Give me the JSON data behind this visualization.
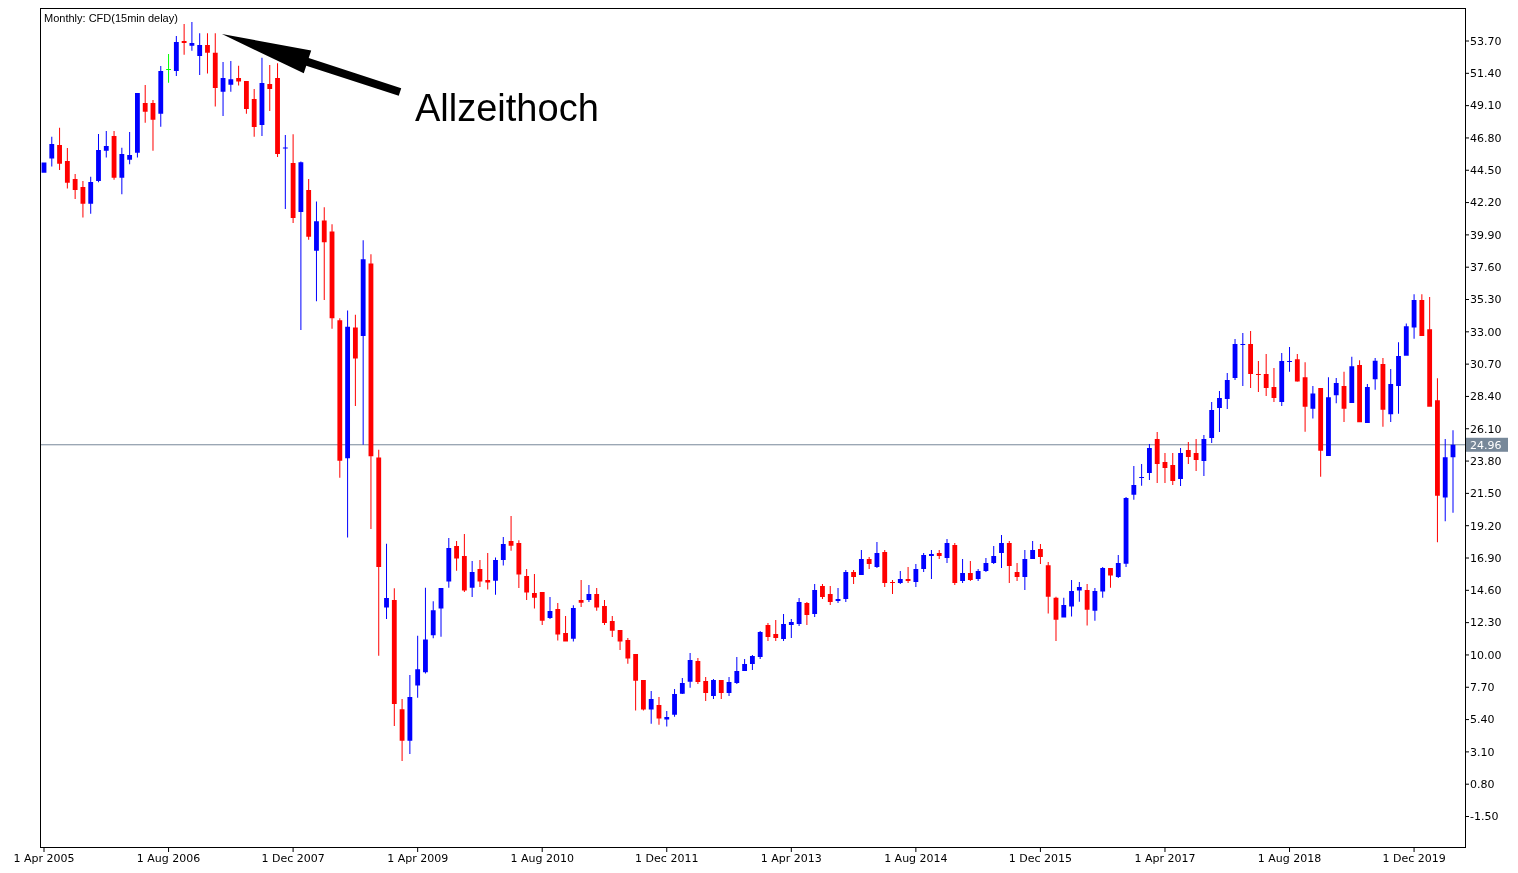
{
  "chart_data": {
    "type": "candlestick",
    "title": "Monthly: CFD(15min delay)",
    "categories": [
      "1 Apr 2005",
      null,
      null,
      null,
      null,
      null,
      null,
      null,
      null,
      null,
      null,
      null,
      null,
      null,
      null,
      null,
      "1 Aug 2006",
      null,
      null,
      null,
      null,
      null,
      null,
      null,
      null,
      null,
      null,
      null,
      null,
      null,
      null,
      null,
      "1 Dec 2007",
      null,
      null,
      null,
      null,
      null,
      null,
      null,
      null,
      null,
      null,
      null,
      null,
      null,
      null,
      null,
      "1 Apr 2009",
      null,
      null,
      null,
      null,
      null,
      null,
      null,
      null,
      null,
      null,
      null,
      null,
      null,
      null,
      null,
      "1 Aug 2010",
      null,
      null,
      null,
      null,
      null,
      null,
      null,
      null,
      null,
      null,
      null,
      null,
      null,
      null,
      null,
      "1 Dec 2011",
      null,
      null,
      null,
      null,
      null,
      null,
      null,
      null,
      null,
      null,
      null,
      null,
      null,
      null,
      null,
      "1 Apr 2013",
      null,
      null,
      null,
      null,
      null,
      null,
      null,
      null,
      null,
      null,
      null,
      null,
      null,
      null,
      null,
      "1 Aug 2014",
      null,
      null,
      null,
      null,
      null,
      null,
      null,
      null,
      null,
      null,
      null,
      null,
      null,
      null,
      null,
      "1 Dec 2015",
      null,
      null,
      null,
      null,
      null,
      null,
      null,
      null,
      null,
      null,
      null,
      null,
      null,
      null,
      null,
      "1 Apr 2017",
      null,
      null,
      null,
      null,
      null,
      null,
      null,
      null,
      null,
      null,
      null,
      null,
      null,
      null,
      null,
      "1 Aug 2018",
      null,
      null,
      null,
      null,
      null,
      null,
      null,
      null,
      null,
      null,
      null,
      null,
      null,
      null,
      null,
      "1 Dec 2019",
      null,
      null,
      null,
      null,
      null
    ],
    "ohlc": [
      [
        44.33,
        45.06,
        44.33,
        45.06
      ],
      [
        45.33,
        46.89,
        44.76,
        46.37
      ],
      [
        46.3,
        47.53,
        44.52,
        44.97
      ],
      [
        45.16,
        46.08,
        43.21,
        43.62
      ],
      [
        43.88,
        44.23,
        42.45,
        43.09
      ],
      [
        43.31,
        43.74,
        41.13,
        42.12
      ],
      [
        42.12,
        44.04,
        41.41,
        43.66
      ],
      [
        43.74,
        47.08,
        43.64,
        45.94
      ],
      [
        45.89,
        47.29,
        45.4,
        46.23
      ],
      [
        46.94,
        47.29,
        43.83,
        43.97
      ],
      [
        43.97,
        46.11,
        42.79,
        45.66
      ],
      [
        45.25,
        47.22,
        44.92,
        45.59
      ],
      [
        45.75,
        50.0,
        45.4,
        50.0
      ],
      [
        49.29,
        50.57,
        47.89,
        48.67
      ],
      [
        49.29,
        49.5,
        45.89,
        48.1
      ],
      [
        48.53,
        51.92,
        47.6,
        51.56
      ],
      [
        51.68,
        52.77,
        50.73,
        51.68
      ],
      [
        51.56,
        54.06,
        51.21,
        53.63
      ],
      [
        53.7,
        54.91,
        52.73,
        53.56
      ],
      [
        53.37,
        55.05,
        53.01,
        53.56
      ],
      [
        52.63,
        54.25,
        51.28,
        53.42
      ],
      [
        53.42,
        54.25,
        51.38,
        52.87
      ],
      [
        52.87,
        54.25,
        49.03,
        50.35
      ],
      [
        50.09,
        52.21,
        48.36,
        51.07
      ],
      [
        50.59,
        52.28,
        50.09,
        50.97
      ],
      [
        51.07,
        51.94,
        50.54,
        50.81
      ],
      [
        50.85,
        50.85,
        48.53,
        48.86
      ],
      [
        49.57,
        50.28,
        46.89,
        47.58
      ],
      [
        47.72,
        52.51,
        46.94,
        50.71
      ],
      [
        50.64,
        51.99,
        48.72,
        50.28
      ],
      [
        51.07,
        52.11,
        45.44,
        45.66
      ],
      [
        46.05,
        47.01,
        41.74,
        46.11
      ],
      [
        45.01,
        47.06,
        40.75,
        41.11
      ],
      [
        41.53,
        45.13,
        33.13,
        45.07
      ],
      [
        43.09,
        43.87,
        39.55,
        39.76
      ],
      [
        38.77,
        42.28,
        35.17,
        40.87
      ],
      [
        40.93,
        41.86,
        35.26,
        39.37
      ],
      [
        40.15,
        40.66,
        33.22,
        33.97
      ],
      [
        33.82,
        33.97,
        22.62,
        23.82
      ],
      [
        24.0,
        34.51,
        18.36,
        33.37
      ],
      [
        33.31,
        34.21,
        27.72,
        31.11
      ],
      [
        32.71,
        39.52,
        24.96,
        38.17
      ],
      [
        37.87,
        38.53,
        18.96,
        24.15
      ],
      [
        24.06,
        24.6,
        9.95,
        16.26
      ],
      [
        13.37,
        17.91,
        12.56,
        14.06
      ],
      [
        13.91,
        14.75,
        4.94,
        6.5
      ],
      [
        6.14,
        6.86,
        2.45,
        3.89
      ],
      [
        3.89,
        8.57,
        2.95,
        7.01
      ],
      [
        7.82,
        11.36,
        6.95,
        8.99
      ],
      [
        8.76,
        14.79,
        8.68,
        11.1
      ],
      [
        11.4,
        13.82,
        11.19,
        13.18
      ],
      [
        13.3,
        14.77,
        11.3,
        14.77
      ],
      [
        15.22,
        18.33,
        14.79,
        17.62
      ],
      [
        17.76,
        18.11,
        16.0,
        16.86
      ],
      [
        17.05,
        18.61,
        14.48,
        14.58
      ],
      [
        14.79,
        16.69,
        14.13,
        15.91
      ],
      [
        16.12,
        16.76,
        14.84,
        15.22
      ],
      [
        15.34,
        17.26,
        14.65,
        15.15
      ],
      [
        15.29,
        16.93,
        14.29,
        16.76
      ],
      [
        16.76,
        18.4,
        16.36,
        17.9
      ],
      [
        18.11,
        19.89,
        17.42,
        17.78
      ],
      [
        17.97,
        18.16,
        14.77,
        15.72
      ],
      [
        15.62,
        16.12,
        13.91,
        14.44
      ],
      [
        14.41,
        15.76,
        13.3,
        14.08
      ],
      [
        14.48,
        14.48,
        12.13,
        12.44
      ],
      [
        12.63,
        14.13,
        12.56,
        13.13
      ],
      [
        13.27,
        13.7,
        11.02,
        11.45
      ],
      [
        11.57,
        12.77,
        10.95,
        10.95
      ],
      [
        11.16,
        13.53,
        10.95,
        13.34
      ],
      [
        13.91,
        15.34,
        13.41,
        13.72
      ],
      [
        13.91,
        14.98,
        13.77,
        14.34
      ],
      [
        14.34,
        14.77,
        13.15,
        13.37
      ],
      [
        13.49,
        13.91,
        12.13,
        12.28
      ],
      [
        12.42,
        12.77,
        11.28,
        11.73
      ],
      [
        11.78,
        11.78,
        10.35,
        10.95
      ],
      [
        11.07,
        11.21,
        9.38,
        9.74
      ],
      [
        10.07,
        10.07,
        6.04,
        8.17
      ],
      [
        8.22,
        8.22,
        6.04,
        6.11
      ],
      [
        6.11,
        7.44,
        5.11,
        6.87
      ],
      [
        6.44,
        7.01,
        5.04,
        5.47
      ],
      [
        5.4,
        6.01,
        4.9,
        5.59
      ],
      [
        5.74,
        7.58,
        5.61,
        7.22
      ],
      [
        7.24,
        8.36,
        7.22,
        8.01
      ],
      [
        8.09,
        10.14,
        7.66,
        9.64
      ],
      [
        9.57,
        9.79,
        7.93,
        8.08
      ],
      [
        8.15,
        8.43,
        6.72,
        7.29
      ],
      [
        7.08,
        8.29,
        6.87,
        8.22
      ],
      [
        8.22,
        8.22,
        6.87,
        7.29
      ],
      [
        7.29,
        8.43,
        7.08,
        8.08
      ],
      [
        8.01,
        9.86,
        7.93,
        8.86
      ],
      [
        8.86,
        9.71,
        8.86,
        9.36
      ],
      [
        9.36,
        10.0,
        8.93,
        9.93
      ],
      [
        9.86,
        11.71,
        9.71,
        11.64
      ],
      [
        12.13,
        12.28,
        10.99,
        11.28
      ],
      [
        11.49,
        12.49,
        10.99,
        11.21
      ],
      [
        11.14,
        12.92,
        10.99,
        12.2
      ],
      [
        12.13,
        12.56,
        11.21,
        12.35
      ],
      [
        12.2,
        14.06,
        12.06,
        13.77
      ],
      [
        13.7,
        13.77,
        12.13,
        12.85
      ],
      [
        12.92,
        15.05,
        12.7,
        14.62
      ],
      [
        14.91,
        15.05,
        13.98,
        14.13
      ],
      [
        14.34,
        14.91,
        13.56,
        13.77
      ],
      [
        13.84,
        14.77,
        13.7,
        13.98
      ],
      [
        13.98,
        16.05,
        13.77,
        15.91
      ],
      [
        15.91,
        16.05,
        15.05,
        15.55
      ],
      [
        15.69,
        17.47,
        15.69,
        16.83
      ],
      [
        16.83,
        16.97,
        16.12,
        16.48
      ],
      [
        16.26,
        18.04,
        16.19,
        17.26
      ],
      [
        17.33,
        17.47,
        14.84,
        15.12
      ],
      [
        15.2,
        15.34,
        14.34,
        15.12
      ],
      [
        15.12,
        15.98,
        15.05,
        15.41
      ],
      [
        15.41,
        16.26,
        15.12,
        15.27
      ],
      [
        15.2,
        16.48,
        14.84,
        16.12
      ],
      [
        16.12,
        17.26,
        15.91,
        17.12
      ],
      [
        17.04,
        17.47,
        15.41,
        17.19
      ],
      [
        17.26,
        17.47,
        16.83,
        17.04
      ],
      [
        16.9,
        18.25,
        16.55,
        17.97
      ],
      [
        17.83,
        17.97,
        14.98,
        15.12
      ],
      [
        15.27,
        16.83,
        15.12,
        15.83
      ],
      [
        15.83,
        16.69,
        15.27,
        15.34
      ],
      [
        15.41,
        16.12,
        15.27,
        15.98
      ],
      [
        15.98,
        16.9,
        15.91,
        16.55
      ],
      [
        16.55,
        17.76,
        16.48,
        17.04
      ],
      [
        17.26,
        18.54,
        16.19,
        17.97
      ],
      [
        17.97,
        18.11,
        15.12,
        16.33
      ],
      [
        15.91,
        16.55,
        15.27,
        15.55
      ],
      [
        15.55,
        17.47,
        14.62,
        16.83
      ],
      [
        16.83,
        18.11,
        16.83,
        17.47
      ],
      [
        17.54,
        17.9,
        16.48,
        16.97
      ],
      [
        16.39,
        16.62,
        12.95,
        14.14
      ],
      [
        14.07,
        14.14,
        11.0,
        12.5
      ],
      [
        12.66,
        14.08,
        12.66,
        13.56
      ],
      [
        13.44,
        15.34,
        12.73,
        14.55
      ],
      [
        14.58,
        15.19,
        13.79,
        14.84
      ],
      [
        14.63,
        15.05,
        12.09,
        13.22
      ],
      [
        13.15,
        14.77,
        12.44,
        14.55
      ],
      [
        14.51,
        16.26,
        14.08,
        16.19
      ],
      [
        16.19,
        16.19,
        14.79,
        15.65
      ],
      [
        15.55,
        17.12,
        15.48,
        16.55
      ],
      [
        16.5,
        21.24,
        16.26,
        21.17
      ],
      [
        21.41,
        23.45,
        21.05,
        22.1
      ],
      [
        22.6,
        23.59,
        22.05,
        22.67
      ],
      [
        22.95,
        25.02,
        22.45,
        24.73
      ],
      [
        25.37,
        25.87,
        22.24,
        23.59
      ],
      [
        23.74,
        24.38,
        22.24,
        23.31
      ],
      [
        23.52,
        24.38,
        22.1,
        22.38
      ],
      [
        22.53,
        24.73,
        22.03,
        24.38
      ],
      [
        24.59,
        25.16,
        23.59,
        24.09
      ],
      [
        24.38,
        25.37,
        23.09,
        23.88
      ],
      [
        23.81,
        25.66,
        22.74,
        25.37
      ],
      [
        25.44,
        28.01,
        25.09,
        27.44
      ],
      [
        27.58,
        28.79,
        25.87,
        28.29
      ],
      [
        28.22,
        30.07,
        27.51,
        29.57
      ],
      [
        29.71,
        32.49,
        29.57,
        32.13
      ],
      [
        32.08,
        32.92,
        29.14,
        32.11
      ],
      [
        32.13,
        33.06,
        29.0,
        29.99
      ],
      [
        30.0,
        30.92,
        28.72,
        29.92
      ],
      [
        29.99,
        31.42,
        28.43,
        29.0
      ],
      [
        29.07,
        30.42,
        28.01,
        28.29
      ],
      [
        28.01,
        31.49,
        27.72,
        30.92
      ],
      [
        30.87,
        31.92,
        30.15,
        30.92
      ],
      [
        31.05,
        31.43,
        29.45,
        29.46
      ],
      [
        29.77,
        30.84,
        25.89,
        27.67
      ],
      [
        27.53,
        29.15,
        26.83,
        28.61
      ],
      [
        29.01,
        29.01,
        22.68,
        24.54
      ],
      [
        24.17,
        29.77,
        24.17,
        28.34
      ],
      [
        28.48,
        29.71,
        27.91,
        29.36
      ],
      [
        29.15,
        30.15,
        26.59,
        27.53
      ],
      [
        27.94,
        31.22,
        27.94,
        30.55
      ],
      [
        30.63,
        30.98,
        26.56,
        26.56
      ],
      [
        26.51,
        29.28,
        26.51,
        29.07
      ],
      [
        29.63,
        31.14,
        28.88,
        30.95
      ],
      [
        30.71,
        31.14,
        26.24,
        27.45
      ],
      [
        27.13,
        30.36,
        26.59,
        29.28
      ],
      [
        29.15,
        32.25,
        27.16,
        31.28
      ],
      [
        31.3,
        33.59,
        31.3,
        33.4
      ],
      [
        33.3,
        35.67,
        32.51,
        35.26
      ],
      [
        35.26,
        35.67,
        32.7,
        32.7
      ],
      [
        33.19,
        35.48,
        27.67,
        27.67
      ],
      [
        28.13,
        29.69,
        18.03,
        21.34
      ],
      [
        21.2,
        25.38,
        19.51,
        24.08
      ],
      [
        24.08,
        26.0,
        20.13,
        24.96
      ]
    ],
    "colors": [
      "#0000ff",
      "#0000ff",
      "#ff0000",
      "#ff0000",
      "#ff0000",
      "#ff0000",
      "#0000ff",
      "#0000ff",
      "#0000ff",
      "#ff0000",
      "#0000ff",
      "#0000ff",
      "#0000ff",
      "#ff0000",
      "#ff0000",
      "#0000ff",
      "#00ff00",
      "#0000ff",
      "#ff0000",
      "#0000ff",
      "#0000ff",
      "#ff0000",
      "#ff0000",
      "#0000ff",
      "#0000ff",
      "#ff0000",
      "#ff0000",
      "#ff0000",
      "#0000ff",
      "#ff0000",
      "#ff0000",
      "#0000ff",
      "#ff0000",
      "#0000ff",
      "#ff0000",
      "#0000ff",
      "#ff0000",
      "#ff0000",
      "#ff0000",
      "#0000ff",
      "#ff0000",
      "#0000ff",
      "#ff0000",
      "#ff0000",
      "#0000ff",
      "#ff0000",
      "#ff0000",
      "#0000ff",
      "#0000ff",
      "#0000ff",
      "#0000ff",
      "#0000ff",
      "#0000ff",
      "#ff0000",
      "#ff0000",
      "#0000ff",
      "#ff0000",
      "#ff0000",
      "#0000ff",
      "#0000ff",
      "#ff0000",
      "#ff0000",
      "#ff0000",
      "#ff0000",
      "#ff0000",
      "#0000ff",
      "#ff0000",
      "#ff0000",
      "#0000ff",
      "#ff0000",
      "#0000ff",
      "#ff0000",
      "#ff0000",
      "#ff0000",
      "#ff0000",
      "#ff0000",
      "#ff0000",
      "#ff0000",
      "#0000ff",
      "#ff0000",
      "#0000ff",
      "#0000ff",
      "#0000ff",
      "#0000ff",
      "#ff0000",
      "#ff0000",
      "#0000ff",
      "#ff0000",
      "#0000ff",
      "#0000ff",
      "#0000ff",
      "#0000ff",
      "#0000ff",
      "#ff0000",
      "#ff0000",
      "#0000ff",
      "#0000ff",
      "#0000ff",
      "#ff0000",
      "#0000ff",
      "#ff0000",
      "#ff0000",
      "#0000ff",
      "#0000ff",
      "#ff0000",
      "#0000ff",
      "#ff0000",
      "#0000ff",
      "#ff0000",
      "#ff0000",
      "#0000ff",
      "#ff0000",
      "#0000ff",
      "#0000ff",
      "#0000ff",
      "#ff0000",
      "#0000ff",
      "#ff0000",
      "#0000ff",
      "#ff0000",
      "#0000ff",
      "#0000ff",
      "#0000ff",
      "#0000ff",
      "#ff0000",
      "#ff0000",
      "#0000ff",
      "#0000ff",
      "#ff0000",
      "#ff0000",
      "#ff0000",
      "#0000ff",
      "#0000ff",
      "#0000ff",
      "#ff0000",
      "#0000ff",
      "#0000ff",
      "#ff0000",
      "#0000ff",
      "#0000ff",
      "#0000ff",
      "#0000ff",
      "#0000ff",
      "#ff0000",
      "#ff0000",
      "#ff0000",
      "#0000ff",
      "#ff0000",
      "#ff0000",
      "#0000ff",
      "#0000ff",
      "#0000ff",
      "#0000ff",
      "#0000ff",
      "#0000ff",
      "#ff0000",
      "#ff0000",
      "#ff0000",
      "#ff0000",
      "#0000ff",
      "#0000ff",
      "#ff0000",
      "#ff0000",
      "#0000ff",
      "#ff0000",
      "#0000ff",
      "#0000ff",
      "#ff0000",
      "#0000ff",
      "#ff0000",
      "#0000ff",
      "#0000ff",
      "#ff0000",
      "#0000ff",
      "#0000ff",
      "#0000ff",
      "#0000ff",
      "#ff0000",
      "#ff0000",
      "#ff0000",
      "#0000ff",
      "#0000ff"
    ],
    "ylim": [
      -3.67,
      56.05
    ],
    "yticks": [
      {
        "value": -1.5,
        "label": "-1.50"
      },
      {
        "value": 0.8,
        "label": "0.80"
      },
      {
        "value": 3.1,
        "label": "3.10"
      },
      {
        "value": 5.4,
        "label": "5.40"
      },
      {
        "value": 7.7,
        "label": "7.70"
      },
      {
        "value": 10,
        "label": "10.00"
      },
      {
        "value": 12.3,
        "label": "12.30"
      },
      {
        "value": 14.6,
        "label": "14.60"
      },
      {
        "value": 16.9,
        "label": "16.90"
      },
      {
        "value": 19.2,
        "label": "19.20"
      },
      {
        "value": 21.5,
        "label": "21.50"
      },
      {
        "value": 23.8,
        "label": "23.80"
      },
      {
        "value": 26.1,
        "label": "26.10"
      },
      {
        "value": 28.4,
        "label": "28.40"
      },
      {
        "value": 30.7,
        "label": "30.70"
      },
      {
        "value": 33,
        "label": "33.00"
      },
      {
        "value": 35.3,
        "label": "35.30"
      },
      {
        "value": 37.6,
        "label": "37.60"
      },
      {
        "value": 39.9,
        "label": "39.90"
      },
      {
        "value": 42.2,
        "label": "42.20"
      },
      {
        "value": 44.5,
        "label": "44.50"
      },
      {
        "value": 46.8,
        "label": "46.80"
      },
      {
        "value": 49.1,
        "label": "49.10"
      },
      {
        "value": 51.4,
        "label": "51.40"
      },
      {
        "value": 53.7,
        "label": "53.70"
      }
    ],
    "ref_lines": [
      {
        "axis": "y",
        "value": 24.96,
        "label": "24.96",
        "color": "#778899"
      }
    ],
    "annotations": [
      "Allzeithoch"
    ]
  }
}
